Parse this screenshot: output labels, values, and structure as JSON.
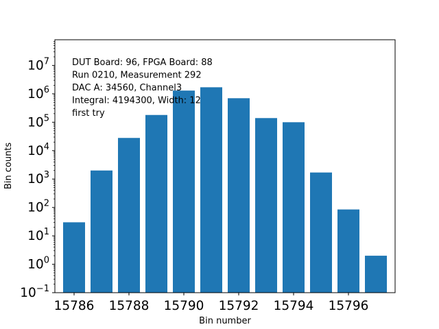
{
  "chart_data": {
    "type": "bar",
    "x": [
      15786,
      15787,
      15788,
      15789,
      15790,
      15791,
      15792,
      15793,
      15794,
      15795,
      15796,
      15797
    ],
    "values": [
      30,
      2000,
      28000,
      180000,
      1300000,
      1700000,
      700000,
      140000,
      100000,
      1700,
      85,
      2
    ],
    "xlabel": "Bin number",
    "ylabel": "Bin counts",
    "yscale": "log",
    "xlim": [
      15785.3,
      15797.7
    ],
    "ylim": [
      0.1,
      80000000
    ],
    "x_ticks": [
      {
        "value": 15786,
        "label": "15786"
      },
      {
        "value": 15788,
        "label": "15788"
      },
      {
        "value": 15790,
        "label": "15790"
      },
      {
        "value": 15792,
        "label": "15792"
      },
      {
        "value": 15794,
        "label": "15794"
      },
      {
        "value": 15796,
        "label": "15796"
      }
    ],
    "y_ticks": [
      {
        "exp": -1,
        "base": "10",
        "power": "−1"
      },
      {
        "exp": 0,
        "base": "10",
        "power": "0"
      },
      {
        "exp": 1,
        "base": "10",
        "power": "1"
      },
      {
        "exp": 2,
        "base": "10",
        "power": "2"
      },
      {
        "exp": 3,
        "base": "10",
        "power": "3"
      },
      {
        "exp": 4,
        "base": "10",
        "power": "4"
      },
      {
        "exp": 5,
        "base": "10",
        "power": "5"
      },
      {
        "exp": 6,
        "base": "10",
        "power": "6"
      },
      {
        "exp": 7,
        "base": "10",
        "power": "7"
      }
    ],
    "annotation_lines": [
      "DUT Board: 96, FPGA Board: 88",
      "Run 0210, Measurement 292",
      "DAC A: 34560, Channel3",
      "Integral: 4194300, Width: 12",
      "first try"
    ],
    "bar_color": "#1f77b4",
    "grid": false,
    "legend": "none"
  }
}
